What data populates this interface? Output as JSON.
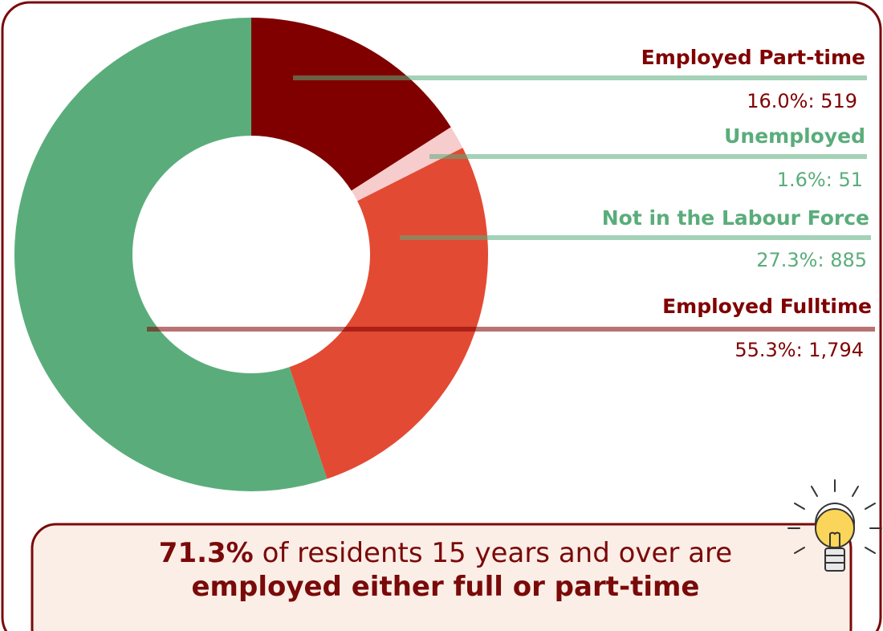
{
  "chart_data": {
    "type": "pie",
    "donut": true,
    "categories": [
      "Employed Part-time",
      "Unemployed",
      "Not in the Labour Force",
      "Employed Fulltime"
    ],
    "values": [
      16.0,
      1.6,
      27.3,
      55.3
    ],
    "value_labels": [
      "16.0%: 519",
      "1.6%: 51",
      "27.3%: 885",
      "55.3%: 1,794"
    ],
    "colors": [
      "#800000",
      "#f6cccc",
      "#e34a33",
      "#5aad7b"
    ],
    "label_colors": [
      "#800000",
      "#5aad7b",
      "#5aad7b",
      "#800000"
    ],
    "leader_colors": [
      "#5aad7b",
      "#5aad7b",
      "#5aad7b",
      "#800000"
    ],
    "annotation": {
      "highlight": "71.3%",
      "text": "of residents 15 years and over are",
      "emphasis": "employed either full or part-time"
    }
  }
}
